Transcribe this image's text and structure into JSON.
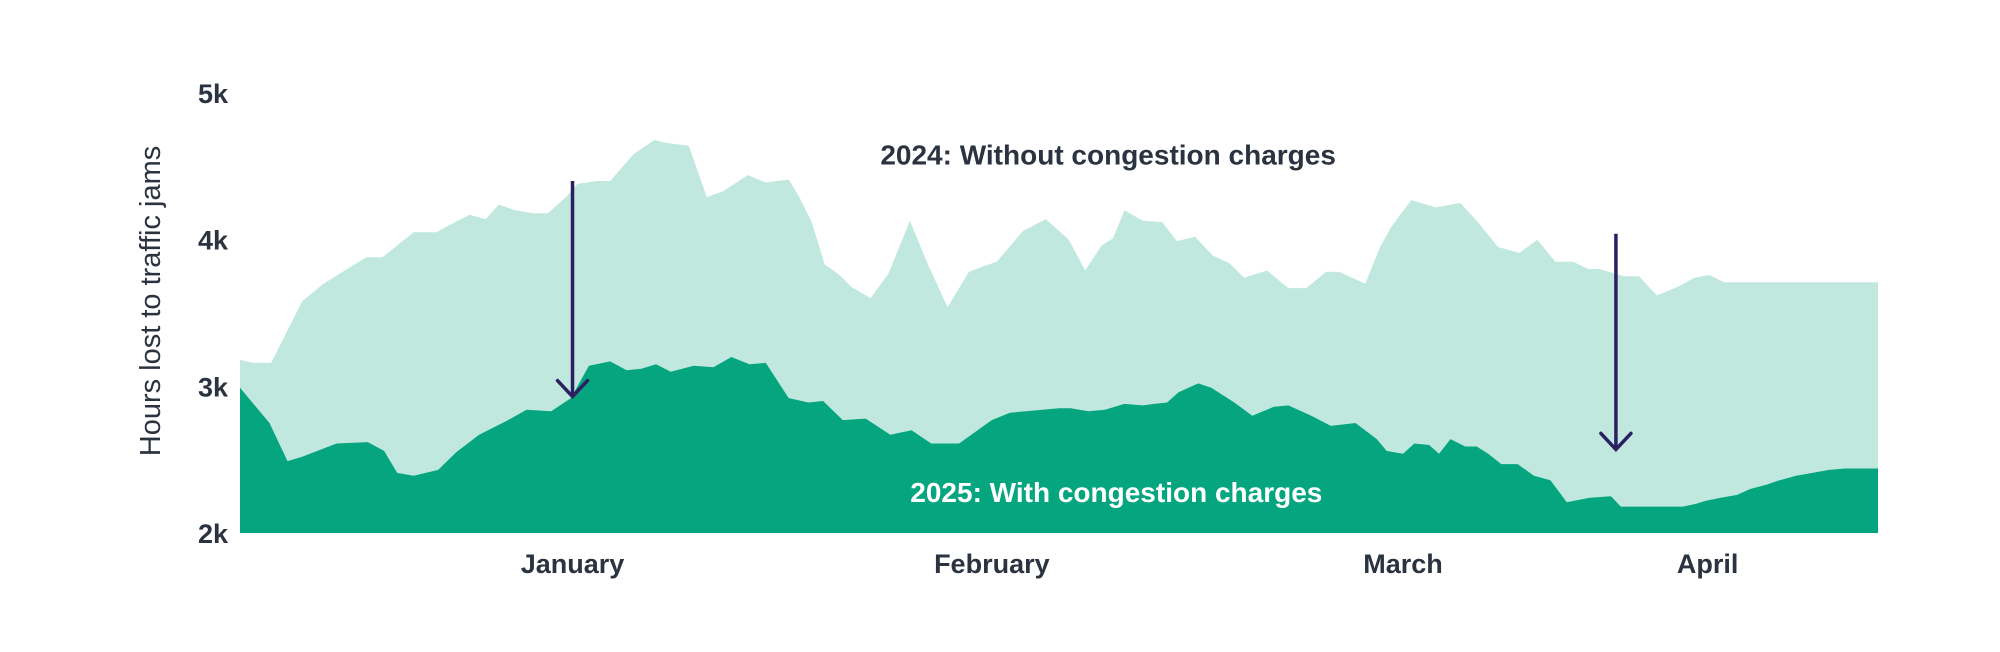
{
  "chart_data": {
    "type": "area",
    "ylabel": "Hours lost to traffic jams",
    "ylim": [
      2000,
      5000
    ],
    "yticks": [
      {
        "value": 2000,
        "label": "2k"
      },
      {
        "value": 3000,
        "label": "3k"
      },
      {
        "value": 4000,
        "label": "4k"
      },
      {
        "value": 5000,
        "label": "5k"
      }
    ],
    "xlim": [
      0,
      100
    ],
    "xticks": [
      {
        "value": 20.3,
        "label": "January"
      },
      {
        "value": 45.9,
        "label": "February"
      },
      {
        "value": 71.0,
        "label": "March"
      },
      {
        "value": 89.6,
        "label": "April"
      }
    ],
    "series": [
      {
        "name": "2024: Without congestion charges",
        "color": "#c0e8df",
        "x": [
          0,
          0.8,
          1.9,
          3.8,
          5.1,
          6.4,
          7.7,
          8.7,
          10.6,
          12.0,
          12.8,
          14.0,
          15.0,
          15.8,
          16.8,
          17.9,
          18.8,
          19.9,
          20.6,
          21.8,
          22.6,
          24.0,
          25.3,
          26.0,
          27.4,
          28.5,
          29.5,
          31.0,
          32.1,
          33.5,
          34.1,
          34.9,
          35.7,
          36.6,
          37.3,
          38.5,
          39.6,
          40.9,
          42.0,
          43.2,
          44.5,
          45.4,
          46.2,
          47.8,
          49.2,
          50.6,
          51.6,
          52.6,
          53.3,
          54.0,
          55.1,
          56.3,
          57.2,
          58.3,
          59.4,
          60.4,
          61.3,
          62.7,
          64.0,
          65.1,
          66.3,
          67.1,
          68.7,
          69.6,
          70.3,
          71.5,
          73.0,
          74.5,
          75.5,
          76.8,
          78.1,
          79.2,
          80.3,
          81.4,
          82.3,
          83.0,
          84.5,
          85.4,
          86.5,
          87.8,
          88.8,
          89.7,
          90.6,
          91.5,
          92.6,
          93.6,
          94.7,
          95.7,
          96.7,
          97.7,
          98.5,
          99.4,
          100
        ],
        "values": [
          3180,
          3160,
          3160,
          3580,
          3700,
          3790,
          3880,
          3880,
          4050,
          4050,
          4100,
          4170,
          4140,
          4240,
          4200,
          4180,
          4180,
          4290,
          4380,
          4400,
          4400,
          4580,
          4680,
          4660,
          4640,
          4290,
          4330,
          4440,
          4390,
          4410,
          4300,
          4120,
          3830,
          3760,
          3680,
          3600,
          3770,
          4130,
          3830,
          3540,
          3780,
          3820,
          3850,
          4060,
          4140,
          4000,
          3790,
          3960,
          4010,
          4200,
          4130,
          4120,
          3990,
          4020,
          3890,
          3840,
          3740,
          3790,
          3670,
          3670,
          3780,
          3780,
          3700,
          3950,
          4090,
          4270,
          4220,
          4250,
          4130,
          3950,
          3910,
          4000,
          3850,
          3850,
          3800,
          3800,
          3750,
          3750,
          3620,
          3680,
          3740,
          3760,
          3710,
          3710,
          3710,
          3710,
          3710,
          3710,
          3710,
          3710,
          3710,
          3710,
          3710
        ]
      },
      {
        "name": "2025: With congestion charges",
        "color": "#05a67f",
        "x": [
          0,
          1.8,
          2.9,
          3.8,
          5.9,
          7.8,
          8.8,
          9.6,
          10.6,
          12.1,
          13.2,
          14.6,
          16.2,
          17.5,
          19.0,
          20.2,
          21.3,
          22.6,
          23.6,
          24.5,
          25.4,
          26.3,
          27.7,
          28.9,
          30.0,
          31.1,
          32.1,
          33.5,
          34.7,
          35.6,
          36.8,
          38.2,
          39.7,
          41.0,
          42.2,
          43.9,
          45.9,
          47.0,
          48.0,
          50.0,
          50.7,
          51.8,
          52.8,
          54.0,
          55.1,
          55.8,
          56.6,
          57.3,
          58.5,
          59.3,
          60.7,
          61.8,
          63.1,
          64.0,
          65.4,
          66.6,
          68.1,
          69.4,
          70.0,
          71.0,
          71.7,
          72.6,
          73.2,
          73.9,
          74.8,
          75.5,
          76.2,
          77.0,
          78.0,
          79.0,
          80.0,
          81.0,
          82.4,
          83.7,
          84.3,
          85.3,
          86.3,
          87.4,
          88.1,
          88.9,
          89.5,
          90.4,
          91.4,
          92.2,
          93.2,
          94.0,
          95.0,
          96.0,
          97.0,
          98.0,
          99.0,
          100
        ],
        "values": [
          2990,
          2750,
          2490,
          2520,
          2610,
          2620,
          2560,
          2410,
          2390,
          2430,
          2550,
          2670,
          2760,
          2840,
          2830,
          2920,
          3140,
          3170,
          3110,
          3120,
          3150,
          3100,
          3140,
          3130,
          3200,
          3150,
          3160,
          2920,
          2890,
          2900,
          2770,
          2780,
          2670,
          2700,
          2610,
          2610,
          2770,
          2820,
          2830,
          2850,
          2850,
          2830,
          2840,
          2880,
          2870,
          2880,
          2890,
          2960,
          3020,
          2990,
          2890,
          2800,
          2860,
          2870,
          2800,
          2730,
          2750,
          2640,
          2560,
          2540,
          2610,
          2600,
          2540,
          2640,
          2590,
          2590,
          2540,
          2470,
          2470,
          2390,
          2360,
          2210,
          2240,
          2250,
          2180,
          2180,
          2180,
          2180,
          2180,
          2200,
          2220,
          2240,
          2260,
          2300,
          2330,
          2360,
          2390,
          2410,
          2430,
          2440,
          2440,
          2440
        ]
      }
    ],
    "annotations": [
      {
        "text": "2024: Without congestion charges",
        "x": 53.0,
        "y": 4580
      },
      {
        "text": "2025: With congestion charges",
        "x": 53.5,
        "y": 2280
      }
    ],
    "arrows": [
      {
        "x": 20.3,
        "from": 4400,
        "to": 2930
      },
      {
        "x": 84.0,
        "from": 4040,
        "to": 2570
      }
    ],
    "arrow_color": "#2c2160",
    "text_colors": {
      "default": "#2b3340",
      "on_dark": "#ffffff"
    }
  }
}
